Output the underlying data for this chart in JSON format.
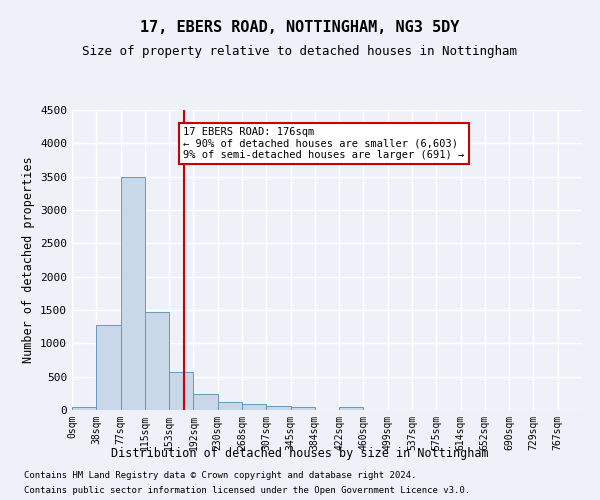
{
  "title": "17, EBERS ROAD, NOTTINGHAM, NG3 5DY",
  "subtitle": "Size of property relative to detached houses in Nottingham",
  "xlabel": "Distribution of detached houses by size in Nottingham",
  "ylabel": "Number of detached properties",
  "bar_color": "#c8d8e8",
  "bar_edge_color": "#6699bb",
  "bin_labels": [
    "0sqm",
    "38sqm",
    "77sqm",
    "115sqm",
    "153sqm",
    "192sqm",
    "230sqm",
    "268sqm",
    "307sqm",
    "345sqm",
    "384sqm",
    "422sqm",
    "460sqm",
    "499sqm",
    "537sqm",
    "575sqm",
    "614sqm",
    "652sqm",
    "690sqm",
    "729sqm",
    "767sqm"
  ],
  "bar_values": [
    50,
    1270,
    3500,
    1475,
    570,
    240,
    115,
    85,
    55,
    40,
    0,
    50,
    0,
    0,
    0,
    0,
    0,
    0,
    0,
    0
  ],
  "ylim": [
    0,
    4500
  ],
  "yticks": [
    0,
    500,
    1000,
    1500,
    2000,
    2500,
    3000,
    3500,
    4000,
    4500
  ],
  "property_size": 176,
  "property_bin_index": 4,
  "red_line_x": 176,
  "annotation_text": "17 EBERS ROAD: 176sqm\n← 90% of detached houses are smaller (6,603)\n9% of semi-detached houses are larger (691) →",
  "footer_line1": "Contains HM Land Registry data © Crown copyright and database right 2024.",
  "footer_line2": "Contains public sector information licensed under the Open Government Licence v3.0.",
  "background_color": "#eef2f8",
  "plot_bg_color": "#eef2f8",
  "grid_color": "#ffffff",
  "annotation_box_color": "#ffffff",
  "annotation_border_color": "#cc0000",
  "red_line_color": "#cc0000"
}
